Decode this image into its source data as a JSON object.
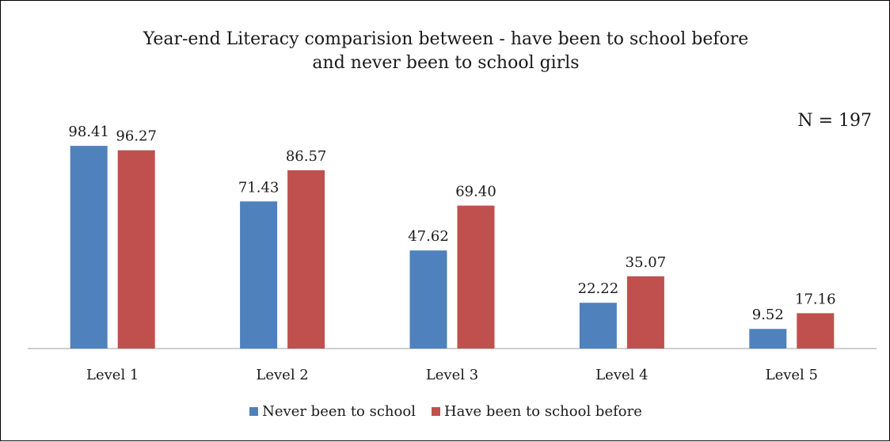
{
  "chart_data": {
    "type": "bar",
    "title_line1": "Year-end Literacy comparision between - have been to school before",
    "title_line2": "and never been to school girls",
    "annotation": "N = 197",
    "categories": [
      "Level 1",
      "Level 2",
      "Level 3",
      "Level 4",
      "Level 5"
    ],
    "series": [
      {
        "name": "Never been to school",
        "values": [
          98.41,
          71.43,
          47.62,
          22.22,
          9.52
        ],
        "labels": [
          "98.41",
          "71.43",
          "47.62",
          "22.22",
          "9.52"
        ],
        "color": "#4f81bd"
      },
      {
        "name": "Have been to school before",
        "values": [
          96.27,
          86.57,
          69.4,
          35.07,
          17.16
        ],
        "labels": [
          "96.27",
          "86.57",
          "69.40",
          "35.07",
          "17.16"
        ],
        "color": "#c0504d"
      }
    ],
    "ylim": [
      0,
      100
    ],
    "grid": false,
    "legend_position": "bottom",
    "axis_color": "#bfbfbf"
  }
}
